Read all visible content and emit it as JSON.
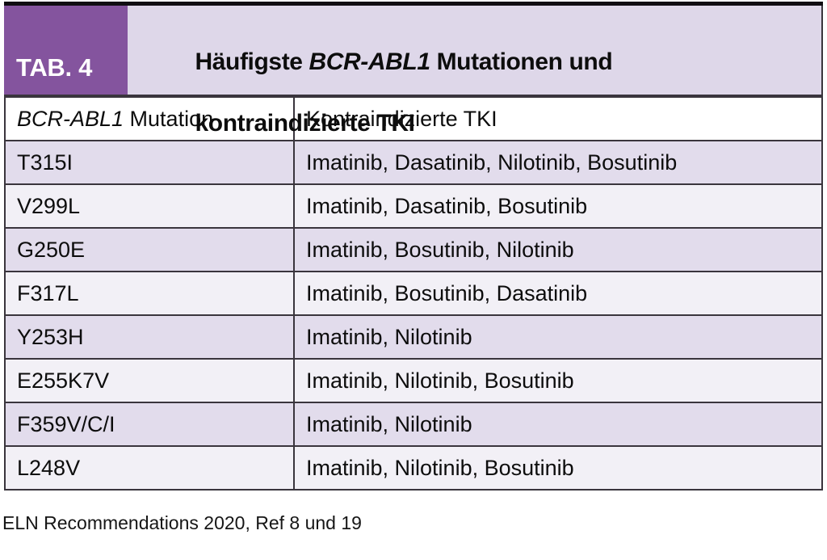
{
  "figure": {
    "badge_label": "TAB. 4",
    "title": {
      "line1_prefix": "Häufigste ",
      "line1_gene": "BCR-ABL1",
      "line1_suffix": " Mutationen und",
      "line2": "kontraindizierte TKI"
    }
  },
  "table": {
    "header": {
      "col1_gene": "BCR-ABL1",
      "col1_rest": " Mutation",
      "col2": "Kontraindizierte TKI"
    },
    "rows": [
      {
        "mutation": "T315I",
        "tki": "Imatinib, Dasatinib, Nilotinib, Bosutinib"
      },
      {
        "mutation": "V299L",
        "tki": "Imatinib, Dasatinib, Bosutinib"
      },
      {
        "mutation": "G250E",
        "tki": "Imatinib, Bosutinib, Nilotinib"
      },
      {
        "mutation": "F317L",
        "tki": "Imatinib, Bosutinib, Dasatinib"
      },
      {
        "mutation": "Y253H",
        "tki": "Imatinib, Nilotinib"
      },
      {
        "mutation": "E255K7V",
        "tki": "Imatinib, Nilotinib, Bosutinib"
      },
      {
        "mutation": "F359V/C/I",
        "tki": "Imatinib, Nilotinib"
      },
      {
        "mutation": "L248V",
        "tki": "Imatinib, Nilotinib, Bosutinib"
      }
    ]
  },
  "footer": {
    "source": "ELN Recommendations 2020, Ref 8 und 19"
  },
  "colors": {
    "badge_purple": "#84549e",
    "title_background": "#ded7e9",
    "row_light": "#f2f0f6",
    "row_shaded": "#e2dcec",
    "border": "#3a353d",
    "top_bar": "#100d12",
    "header_row_background": "#ffffff",
    "text": "#0d0d0d"
  }
}
